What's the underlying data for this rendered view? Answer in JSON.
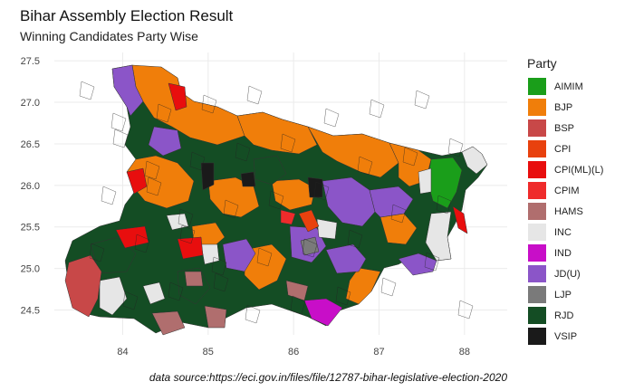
{
  "title": "Bihar Assembly Election Result",
  "subtitle": "Winning Candidates Party Wise",
  "caption": "data source:https://eci.gov.in/files/file/12787-bihar-legislative-election-2020",
  "legend": {
    "title": "Party",
    "items": [
      {
        "label": "AIMIM",
        "color": "#1a9e1a"
      },
      {
        "label": "BJP",
        "color": "#f07e0a"
      },
      {
        "label": "BSP",
        "color": "#c84848"
      },
      {
        "label": "CPI",
        "color": "#e8410e"
      },
      {
        "label": "CPI(ML)(L)",
        "color": "#e80e0e"
      },
      {
        "label": "CPIM",
        "color": "#ef2b2b"
      },
      {
        "label": "HAMS",
        "color": "#b06e6e"
      },
      {
        "label": "INC",
        "color": "#e6e6e6"
      },
      {
        "label": "IND",
        "color": "#c80ec8"
      },
      {
        "label": "JD(U)",
        "color": "#8b55c8"
      },
      {
        "label": "LJP",
        "color": "#7a7a7a"
      },
      {
        "label": "RJD",
        "color": "#144d24"
      },
      {
        "label": "VSIP",
        "color": "#1a1a1a"
      }
    ]
  },
  "axes": {
    "x_ticks": [
      84,
      85,
      86,
      87,
      88
    ],
    "y_ticks": [
      24.5,
      25.0,
      25.5,
      26.0,
      26.5,
      27.0,
      27.5
    ],
    "xlim": [
      83.2,
      88.5
    ],
    "ylim": [
      24.2,
      27.6
    ],
    "grid": true
  }
}
